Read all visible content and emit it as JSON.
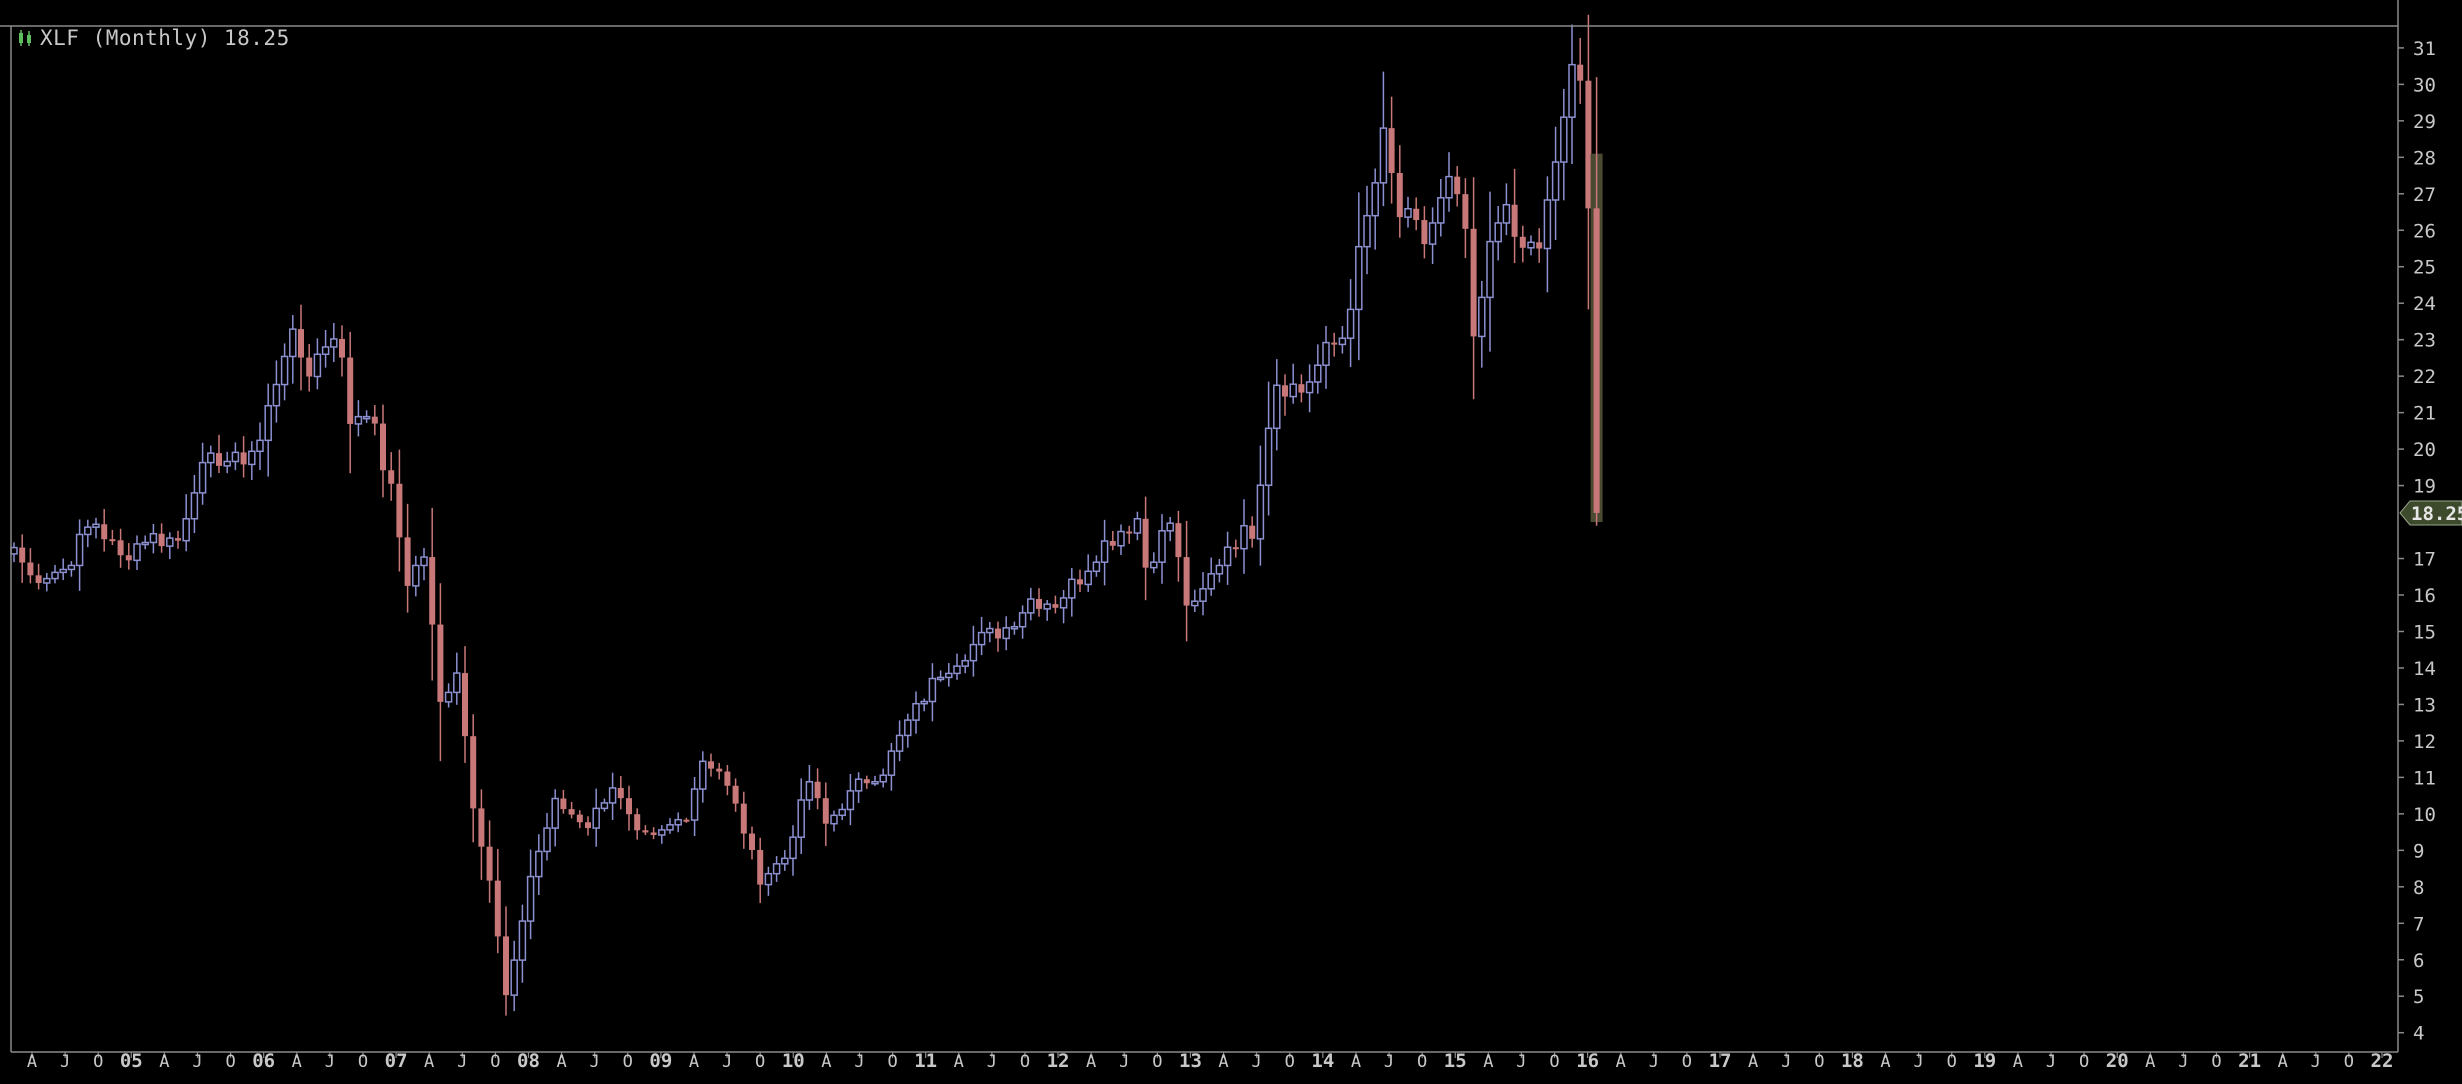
{
  "header": {
    "symbol": "XLF",
    "period": "(Monthly)",
    "last_price": "18.25",
    "title": "XLF (Monthly) 18.25"
  },
  "colors": {
    "background": "#000000",
    "up_candle": "#8c90d0",
    "down_candle": "#c87878",
    "axis_text": "#c8c8c8",
    "frame": "#8a8a8a",
    "price_tag": "#3d4a2c",
    "highlight": "#4a4a32"
  },
  "chart_data": {
    "type": "candlestick",
    "title": "XLF (Monthly) 18.25",
    "xlabel": "",
    "ylabel": "",
    "ylim": [
      3.8,
      31.6
    ],
    "y_ticks": [
      4,
      5,
      6,
      7,
      8,
      9,
      10,
      11,
      12,
      13,
      14,
      15,
      16,
      17,
      19,
      20,
      21,
      22,
      23,
      24,
      25,
      26,
      27,
      28,
      29,
      30,
      31
    ],
    "last_price_label": "18.25",
    "x_axis_labels": [
      "A",
      "J",
      "O",
      "05",
      "A",
      "J",
      "O",
      "06",
      "A",
      "J",
      "O",
      "07",
      "A",
      "J",
      "O",
      "08",
      "A",
      "J",
      "O",
      "09",
      "A",
      "J",
      "O",
      "10",
      "A",
      "J",
      "O",
      "11",
      "A",
      "J",
      "O",
      "12",
      "A",
      "J",
      "O",
      "13",
      "A",
      "J",
      "O",
      "14",
      "A",
      "J",
      "O",
      "15",
      "A",
      "J",
      "O",
      "16",
      "A",
      "J",
      "O",
      "17",
      "A",
      "J",
      "O",
      "18",
      "A",
      "J",
      "O",
      "19",
      "A",
      "J",
      "O",
      "20",
      "A",
      "J",
      "O",
      "21",
      "A",
      "J",
      "O",
      "22"
    ],
    "x_axis_label_is_year": [
      false,
      false,
      false,
      true,
      false,
      false,
      false,
      true,
      false,
      false,
      false,
      true,
      false,
      false,
      false,
      true,
      false,
      false,
      false,
      true,
      false,
      false,
      false,
      true,
      false,
      false,
      false,
      true,
      false,
      false,
      false,
      true,
      false,
      false,
      false,
      true,
      false,
      false,
      false,
      true,
      false,
      false,
      false,
      true,
      false,
      false,
      false,
      true,
      false,
      false,
      false,
      true,
      false,
      false,
      false,
      true,
      false,
      false,
      false,
      true,
      false,
      false,
      false,
      true,
      false,
      false,
      false,
      true,
      false,
      false,
      false,
      true
    ],
    "first_month": "2004-02",
    "close_anchors": [
      [
        "2004-02",
        17.3
      ],
      [
        "2004-04",
        16.5
      ],
      [
        "2004-08",
        16.7
      ],
      [
        "2004-11",
        17.8
      ],
      [
        "2004-12",
        18.0
      ],
      [
        "2005-03",
        17.0
      ],
      [
        "2005-06",
        17.6
      ],
      [
        "2005-10",
        17.5
      ],
      [
        "2005-12",
        19.1
      ],
      [
        "2006-03",
        19.8
      ],
      [
        "2006-05",
        19.6
      ],
      [
        "2006-08",
        20.2
      ],
      [
        "2006-11",
        22.8
      ],
      [
        "2006-12",
        22.9
      ],
      [
        "2007-02",
        22.2
      ],
      [
        "2007-05",
        23.3
      ],
      [
        "2007-06",
        22.3
      ],
      [
        "2007-07",
        20.8
      ],
      [
        "2007-09",
        21.2
      ],
      [
        "2007-12",
        18.8
      ],
      [
        "2008-02",
        16.4
      ],
      [
        "2008-04",
        17.1
      ],
      [
        "2008-06",
        13.0
      ],
      [
        "2008-08",
        14.0
      ],
      [
        "2008-10",
        10.3
      ],
      [
        "2008-12",
        8.2
      ],
      [
        "2009-02",
        5.0
      ],
      [
        "2009-03",
        5.9
      ],
      [
        "2009-05",
        8.3
      ],
      [
        "2009-08",
        10.3
      ],
      [
        "2009-12",
        9.7
      ],
      [
        "2010-03",
        10.8
      ],
      [
        "2010-06",
        9.4
      ],
      [
        "2010-08",
        9.3
      ],
      [
        "2010-12",
        10.0
      ],
      [
        "2011-02",
        11.5
      ],
      [
        "2011-04",
        11.2
      ],
      [
        "2011-06",
        10.2
      ],
      [
        "2011-09",
        8.2
      ],
      [
        "2011-12",
        8.8
      ],
      [
        "2012-03",
        10.9
      ],
      [
        "2012-05",
        9.7
      ],
      [
        "2012-09",
        10.8
      ],
      [
        "2012-12",
        11.2
      ],
      [
        "2013-03",
        12.5
      ],
      [
        "2013-07",
        13.9
      ],
      [
        "2013-12",
        14.8
      ],
      [
        "2014-03",
        15.1
      ],
      [
        "2014-06",
        15.9
      ],
      [
        "2014-09",
        15.8
      ],
      [
        "2014-12",
        16.5
      ],
      [
        "2015-02",
        17.2
      ],
      [
        "2015-05",
        17.8
      ],
      [
        "2015-07",
        18.1
      ],
      [
        "2015-08",
        16.8
      ],
      [
        "2015-11",
        18.0
      ],
      [
        "2016-01",
        15.8
      ],
      [
        "2016-02",
        15.6
      ],
      [
        "2016-06",
        17.4
      ],
      [
        "2016-09",
        17.8
      ],
      [
        "2016-11",
        20.8
      ],
      [
        "2016-12",
        21.9
      ],
      [
        "2017-03",
        21.6
      ],
      [
        "2017-06",
        22.6
      ],
      [
        "2017-08",
        23.1
      ],
      [
        "2017-12",
        27.3
      ],
      [
        "2018-01",
        28.4
      ],
      [
        "2018-03",
        26.4
      ],
      [
        "2018-06",
        25.7
      ],
      [
        "2018-09",
        27.2
      ],
      [
        "2018-11",
        26.0
      ],
      [
        "2018-12",
        22.7
      ],
      [
        "2019-02",
        25.4
      ],
      [
        "2019-04",
        27.1
      ],
      [
        "2019-05",
        25.4
      ],
      [
        "2019-08",
        25.6
      ],
      [
        "2019-10",
        27.6
      ],
      [
        "2019-12",
        30.6
      ],
      [
        "2020-01",
        29.7
      ],
      [
        "2020-02",
        26.4
      ],
      [
        "2020-03",
        18.25
      ]
    ]
  }
}
